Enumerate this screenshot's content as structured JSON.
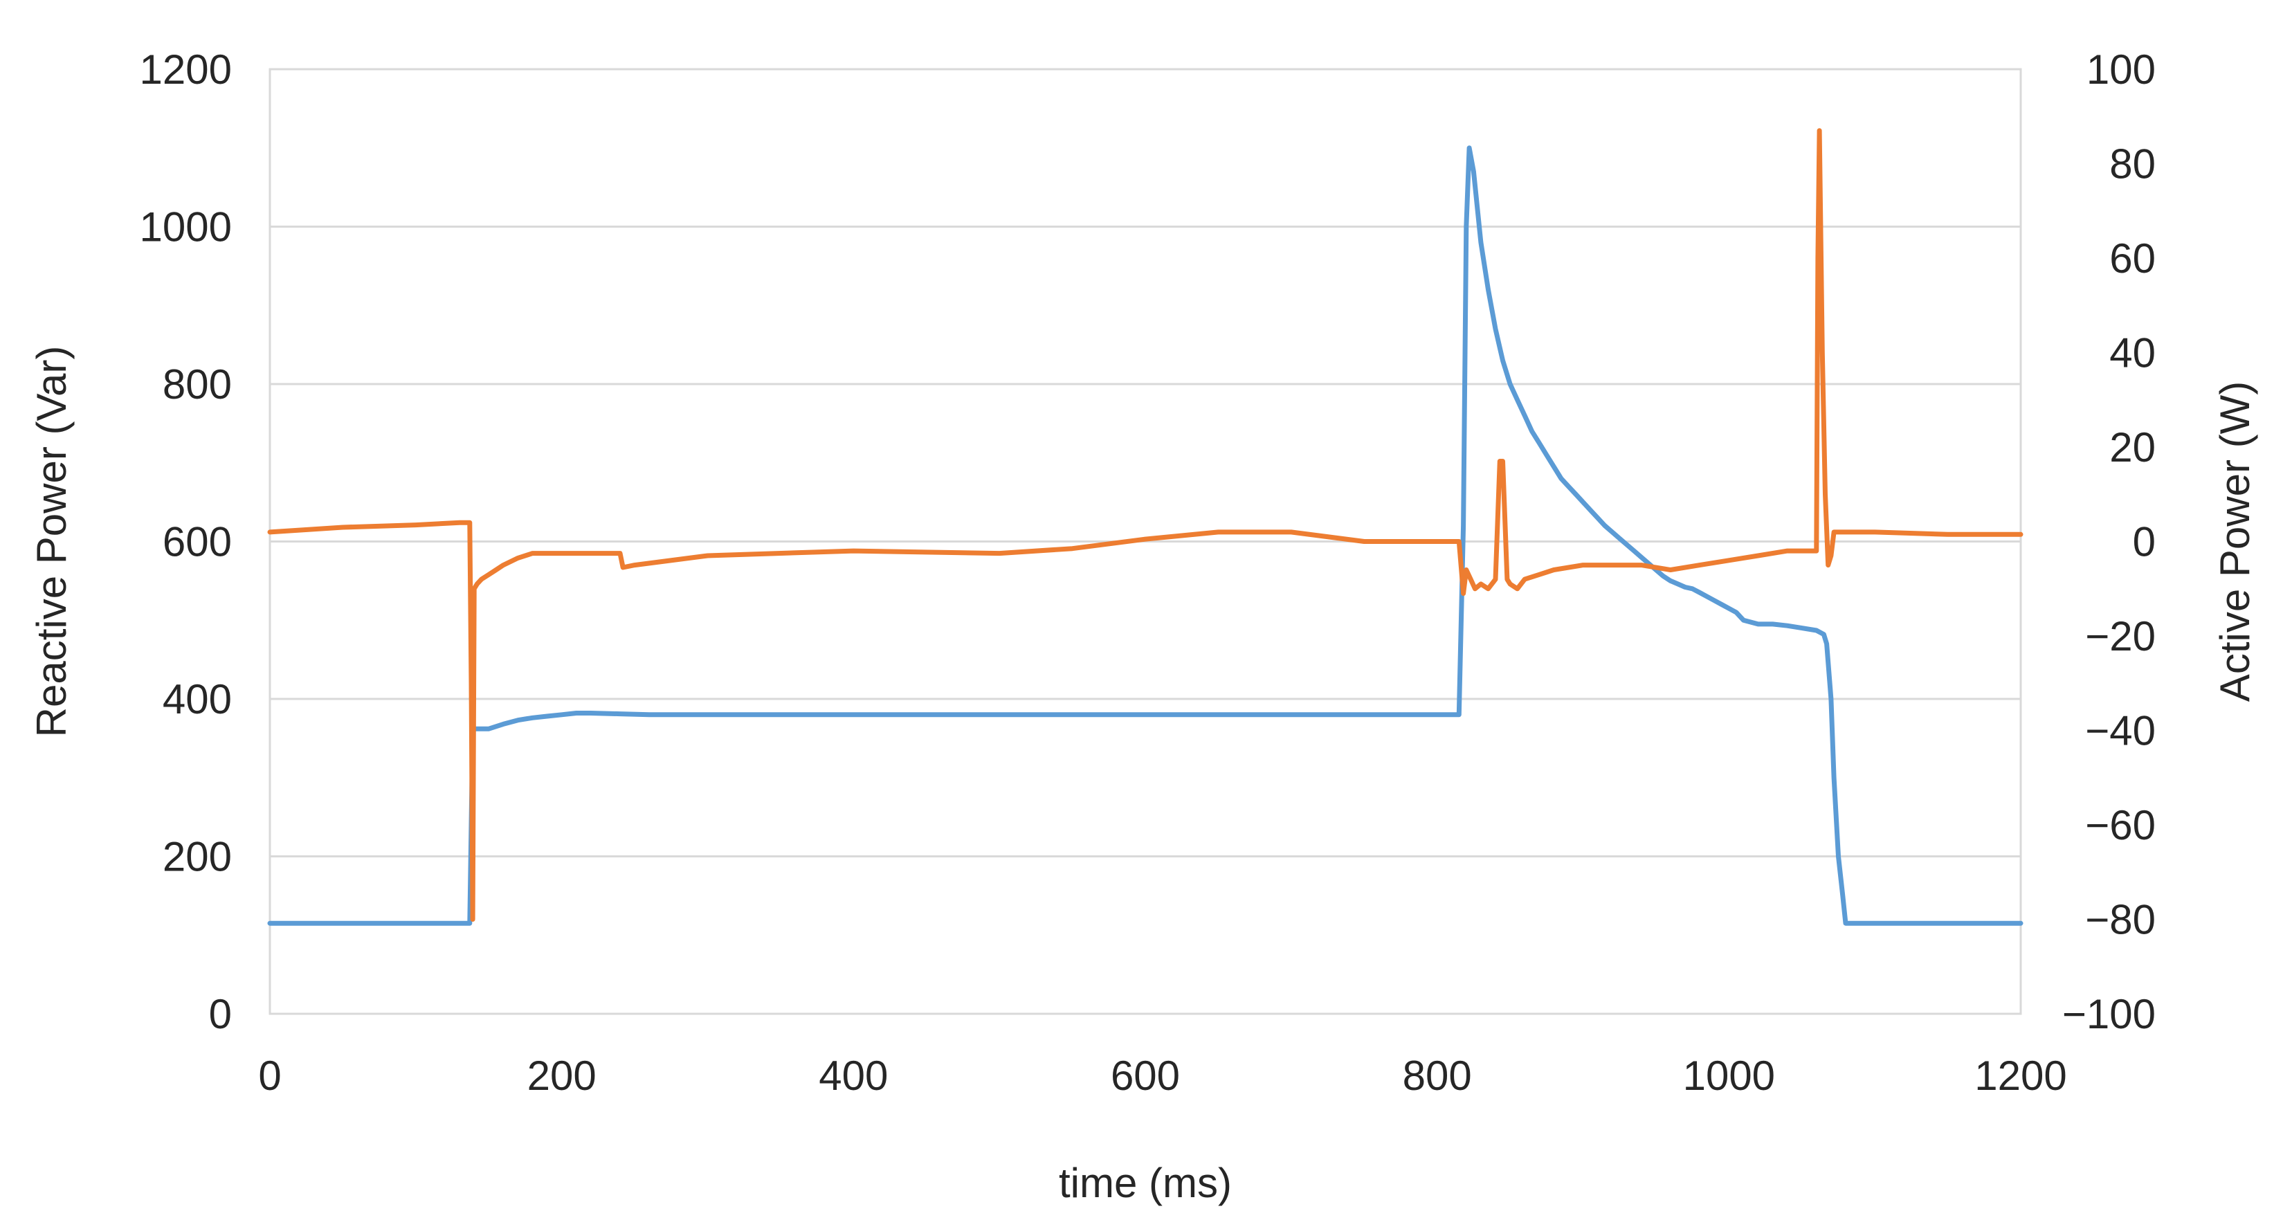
{
  "chart_data": {
    "type": "line",
    "title": "",
    "xlabel": "time (ms)",
    "ylabel_left": "Reactive Power (Var)",
    "ylabel_right": "Active Power (W)",
    "xlim": [
      0,
      1200
    ],
    "ylim_left": [
      0,
      1200
    ],
    "ylim_right": [
      -100,
      100
    ],
    "x_ticks": [
      "0",
      "200",
      "400",
      "600",
      "800",
      "1000",
      "1200"
    ],
    "y_left_ticks": [
      "0",
      "200",
      "400",
      "600",
      "800",
      "1000",
      "1200"
    ],
    "y_right_ticks": [
      "−100",
      "−80",
      "−60",
      "−40",
      "−20",
      "0",
      "20",
      "40",
      "60",
      "80",
      "100"
    ],
    "grid": true,
    "legend": "none",
    "series": [
      {
        "axis": "left",
        "color": "#5b9bd5",
        "x": [
          0,
          137,
          139,
          140,
          150,
          160,
          170,
          180,
          190,
          200,
          210,
          220,
          240,
          260,
          300,
          400,
          500,
          600,
          700,
          800,
          815,
          818,
          820,
          822,
          825,
          830,
          835,
          840,
          845,
          850,
          855,
          860,
          865,
          870,
          875,
          880,
          885,
          890,
          895,
          900,
          905,
          910,
          915,
          920,
          925,
          930,
          935,
          940,
          945,
          950,
          955,
          960,
          965,
          970,
          975,
          980,
          985,
          990,
          995,
          1000,
          1005,
          1010,
          1020,
          1030,
          1040,
          1050,
          1060,
          1065,
          1067,
          1070,
          1072,
          1075,
          1078,
          1080,
          1100,
          1150,
          1200
        ],
        "values": [
          115,
          115,
          362,
          362,
          362,
          368,
          373,
          376,
          378,
          380,
          382,
          382,
          381,
          380,
          380,
          380,
          380,
          380,
          380,
          380,
          380,
          620,
          1000,
          1100,
          1070,
          980,
          920,
          870,
          830,
          800,
          780,
          760,
          740,
          725,
          710,
          695,
          680,
          670,
          660,
          650,
          640,
          630,
          620,
          612,
          604,
          596,
          588,
          580,
          572,
          564,
          556,
          550,
          546,
          542,
          540,
          535,
          530,
          525,
          520,
          515,
          510,
          500,
          495,
          495,
          493,
          490,
          487,
          482,
          470,
          400,
          300,
          200,
          150,
          115,
          115,
          115,
          115
        ]
      },
      {
        "axis": "right",
        "color": "#ed7d31",
        "x": [
          0,
          50,
          100,
          130,
          137,
          138,
          139,
          140,
          142,
          145,
          150,
          155,
          160,
          170,
          180,
          200,
          220,
          240,
          242,
          250,
          300,
          400,
          500,
          550,
          600,
          650,
          700,
          750,
          800,
          815,
          818,
          820,
          823,
          826,
          830,
          835,
          840,
          843,
          845,
          848,
          850,
          855,
          860,
          870,
          880,
          900,
          920,
          940,
          960,
          980,
          1000,
          1020,
          1040,
          1060,
          1061,
          1062,
          1064,
          1066,
          1068,
          1070,
          1072,
          1075,
          1080,
          1100,
          1150,
          1200
        ],
        "values": [
          2,
          3,
          3.5,
          4,
          4,
          -30,
          -80,
          -10,
          -9,
          -8,
          -7,
          -6,
          -5,
          -3.5,
          -2.5,
          -2.5,
          -2.5,
          -2.5,
          -5.5,
          -5,
          -3,
          -2,
          -2.5,
          -1.5,
          0.5,
          2,
          2,
          0,
          0,
          0,
          -11,
          -6,
          -8,
          -10,
          -9,
          -10,
          -8,
          17,
          17,
          -8,
          -9,
          -10,
          -8,
          -7,
          -6,
          -5,
          -5,
          -5,
          -6,
          -5,
          -4,
          -3,
          -2,
          -2,
          60,
          87,
          40,
          10,
          -5,
          -3,
          2,
          2,
          2,
          2,
          1.5,
          1.5
        ]
      }
    ]
  }
}
